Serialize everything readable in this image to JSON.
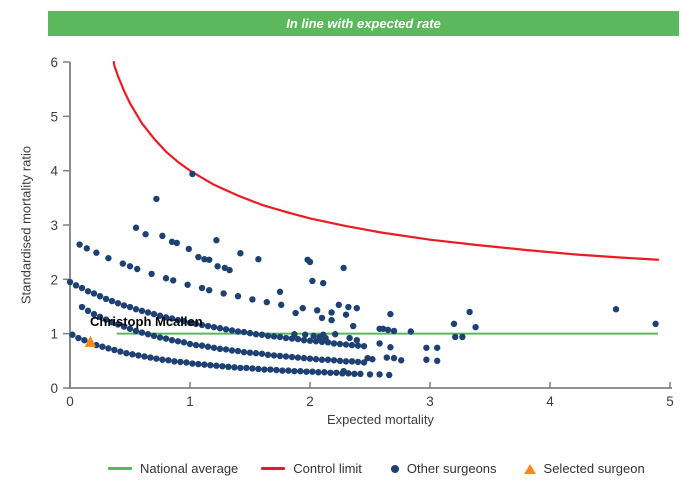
{
  "banner": {
    "title": "In line with expected rate",
    "background": "#5CB85C",
    "text_color": "#FFFFFF"
  },
  "annotation": {
    "label": "Christoph Mcallen"
  },
  "legend": {
    "items": [
      {
        "label": "National average",
        "swatch": "green-line",
        "color": "#5CB85C"
      },
      {
        "label": "Control limit",
        "swatch": "red-line",
        "color": "#EC1B23"
      },
      {
        "label": "Other surgeons",
        "swatch": "blue-dot",
        "color": "#1E4173"
      },
      {
        "label": "Selected surgeon",
        "swatch": "orange-triangle",
        "color": "#F28B1D"
      }
    ]
  },
  "chart_data": {
    "type": "scatter",
    "title": "In line with expected rate",
    "xlabel": "Expected mortality",
    "ylabel": "Standardised mortality ratio",
    "xlim": [
      0,
      5
    ],
    "ylim": [
      0,
      6
    ],
    "x_ticks": [
      0,
      1,
      2,
      3,
      4,
      5
    ],
    "y_ticks": [
      0,
      1,
      2,
      3,
      4,
      5,
      6
    ],
    "grid": false,
    "legend_position": "bottom",
    "axis_color": "#808080",
    "tick_label_color": "#3d3d3d",
    "national_average": {
      "y": 1.0,
      "x_start": 0.39,
      "x_end": 4.9,
      "color": "#5CB85C"
    },
    "control_limit": {
      "color": "#EC1B23",
      "points": [
        [
          0.365,
          6.0
        ],
        [
          0.37,
          5.93
        ],
        [
          0.4,
          5.74
        ],
        [
          0.45,
          5.47
        ],
        [
          0.5,
          5.24
        ],
        [
          0.6,
          4.87
        ],
        [
          0.7,
          4.59
        ],
        [
          0.8,
          4.35
        ],
        [
          0.9,
          4.16
        ],
        [
          1.0,
          4.0
        ],
        [
          1.2,
          3.74
        ],
        [
          1.4,
          3.54
        ],
        [
          1.6,
          3.37
        ],
        [
          1.8,
          3.24
        ],
        [
          2.0,
          3.12
        ],
        [
          2.3,
          2.98
        ],
        [
          2.6,
          2.86
        ],
        [
          3.0,
          2.73
        ],
        [
          3.4,
          2.63
        ],
        [
          3.8,
          2.54
        ],
        [
          4.2,
          2.46
        ],
        [
          4.6,
          2.4
        ],
        [
          4.9,
          2.36
        ]
      ]
    },
    "selected_surgeon": {
      "name": "Christoph Mcallen",
      "x": 0.17,
      "y": 0.85,
      "color": "#F28B1D"
    },
    "other_surgeons": {
      "color": "#1E4173",
      "marker_radius": 3.2,
      "points": [
        [
          0.02,
          0.98
        ],
        [
          0.07,
          0.92
        ],
        [
          0.12,
          0.88
        ],
        [
          0.17,
          0.83
        ],
        [
          0.22,
          0.79
        ],
        [
          0.27,
          0.76
        ],
        [
          0.32,
          0.73
        ],
        [
          0.37,
          0.7
        ],
        [
          0.42,
          0.67
        ],
        [
          0.47,
          0.64
        ],
        [
          0.52,
          0.62
        ],
        [
          0.57,
          0.6
        ],
        [
          0.62,
          0.58
        ],
        [
          0.67,
          0.56
        ],
        [
          0.72,
          0.54
        ],
        [
          0.77,
          0.52
        ],
        [
          0.82,
          0.51
        ],
        [
          0.87,
          0.49
        ],
        [
          0.92,
          0.48
        ],
        [
          0.97,
          0.47
        ],
        [
          1.02,
          0.45
        ],
        [
          1.07,
          0.44
        ],
        [
          1.12,
          0.43
        ],
        [
          1.17,
          0.42
        ],
        [
          1.22,
          0.41
        ],
        [
          1.27,
          0.4
        ],
        [
          1.32,
          0.39
        ],
        [
          1.37,
          0.38
        ],
        [
          1.42,
          0.37
        ],
        [
          1.47,
          0.37
        ],
        [
          1.52,
          0.36
        ],
        [
          1.57,
          0.35
        ],
        [
          1.62,
          0.34
        ],
        [
          1.67,
          0.34
        ],
        [
          1.72,
          0.33
        ],
        [
          1.77,
          0.32
        ],
        [
          1.82,
          0.32
        ],
        [
          1.87,
          0.31
        ],
        [
          1.92,
          0.31
        ],
        [
          1.97,
          0.3
        ],
        [
          2.02,
          0.3
        ],
        [
          2.07,
          0.29
        ],
        [
          2.12,
          0.29
        ],
        [
          2.17,
          0.28
        ],
        [
          2.22,
          0.28
        ],
        [
          2.27,
          0.27
        ],
        [
          2.32,
          0.27
        ],
        [
          2.37,
          0.26
        ],
        [
          2.42,
          0.26
        ],
        [
          2.5,
          0.25
        ],
        [
          2.58,
          0.25
        ],
        [
          2.66,
          0.24
        ],
        [
          0.1,
          1.49
        ],
        [
          0.15,
          1.42
        ],
        [
          0.2,
          1.36
        ],
        [
          0.25,
          1.31
        ],
        [
          0.3,
          1.26
        ],
        [
          0.35,
          1.21
        ],
        [
          0.4,
          1.17
        ],
        [
          0.45,
          1.13
        ],
        [
          0.5,
          1.09
        ],
        [
          0.55,
          1.05
        ],
        [
          0.6,
          1.02
        ],
        [
          0.65,
          0.99
        ],
        [
          0.7,
          0.96
        ],
        [
          0.75,
          0.93
        ],
        [
          0.8,
          0.91
        ],
        [
          0.85,
          0.88
        ],
        [
          0.9,
          0.86
        ],
        [
          0.95,
          0.84
        ],
        [
          1.0,
          0.81
        ],
        [
          1.05,
          0.79
        ],
        [
          1.1,
          0.78
        ],
        [
          1.15,
          0.76
        ],
        [
          1.2,
          0.74
        ],
        [
          1.25,
          0.72
        ],
        [
          1.3,
          0.71
        ],
        [
          1.35,
          0.69
        ],
        [
          1.4,
          0.68
        ],
        [
          1.45,
          0.66
        ],
        [
          1.5,
          0.65
        ],
        [
          1.55,
          0.64
        ],
        [
          1.6,
          0.63
        ],
        [
          1.65,
          0.61
        ],
        [
          1.7,
          0.6
        ],
        [
          1.75,
          0.59
        ],
        [
          1.8,
          0.58
        ],
        [
          1.85,
          0.57
        ],
        [
          1.9,
          0.56
        ],
        [
          1.95,
          0.55
        ],
        [
          2.0,
          0.54
        ],
        [
          2.05,
          0.53
        ],
        [
          2.1,
          0.52
        ],
        [
          2.15,
          0.52
        ],
        [
          2.2,
          0.51
        ],
        [
          2.25,
          0.5
        ],
        [
          2.3,
          0.49
        ],
        [
          2.35,
          0.49
        ],
        [
          2.4,
          0.48
        ],
        [
          2.45,
          0.47
        ],
        [
          0.0,
          1.95
        ],
        [
          0.05,
          1.89
        ],
        [
          0.1,
          1.84
        ],
        [
          0.15,
          1.78
        ],
        [
          0.2,
          1.74
        ],
        [
          0.25,
          1.69
        ],
        [
          0.3,
          1.64
        ],
        [
          0.35,
          1.6
        ],
        [
          0.4,
          1.56
        ],
        [
          0.45,
          1.52
        ],
        [
          0.5,
          1.49
        ],
        [
          0.55,
          1.45
        ],
        [
          0.6,
          1.42
        ],
        [
          0.65,
          1.39
        ],
        [
          0.7,
          1.36
        ],
        [
          0.75,
          1.33
        ],
        [
          0.8,
          1.3
        ],
        [
          0.85,
          1.28
        ],
        [
          0.9,
          1.25
        ],
        [
          0.95,
          1.23
        ],
        [
          1.0,
          1.2
        ],
        [
          1.05,
          1.18
        ],
        [
          1.1,
          1.16
        ],
        [
          1.15,
          1.14
        ],
        [
          1.2,
          1.12
        ],
        [
          1.25,
          1.1
        ],
        [
          1.3,
          1.08
        ],
        [
          1.35,
          1.06
        ],
        [
          1.4,
          1.04
        ],
        [
          1.45,
          1.03
        ],
        [
          1.5,
          1.01
        ],
        [
          1.55,
          0.99
        ],
        [
          1.6,
          0.98
        ],
        [
          1.65,
          0.96
        ],
        [
          1.7,
          0.95
        ],
        [
          1.75,
          0.94
        ],
        [
          1.8,
          0.92
        ],
        [
          1.85,
          0.91
        ],
        [
          1.9,
          0.9
        ],
        [
          1.95,
          0.88
        ],
        [
          2.0,
          0.87
        ],
        [
          2.05,
          0.86
        ],
        [
          2.1,
          0.85
        ],
        [
          2.15,
          0.84
        ],
        [
          2.2,
          0.82
        ],
        [
          2.25,
          0.81
        ],
        [
          2.3,
          0.8
        ],
        [
          2.35,
          0.79
        ],
        [
          2.4,
          0.78
        ],
        [
          2.45,
          0.77
        ],
        [
          0.08,
          2.64
        ],
        [
          0.14,
          2.57
        ],
        [
          0.22,
          2.49
        ],
        [
          0.32,
          2.39
        ],
        [
          0.44,
          2.29
        ],
        [
          0.5,
          2.24
        ],
        [
          0.56,
          2.19
        ],
        [
          0.68,
          2.1
        ],
        [
          0.8,
          2.02
        ],
        [
          0.86,
          1.98
        ],
        [
          0.98,
          1.9
        ],
        [
          1.1,
          1.84
        ],
        [
          1.16,
          1.8
        ],
        [
          1.28,
          1.74
        ],
        [
          1.4,
          1.69
        ],
        [
          1.52,
          1.63
        ],
        [
          1.64,
          1.58
        ],
        [
          1.76,
          1.53
        ],
        [
          1.94,
          1.47
        ],
        [
          2.06,
          1.43
        ],
        [
          2.18,
          1.39
        ],
        [
          2.3,
          1.35
        ],
        [
          0.72,
          3.48
        ],
        [
          1.02,
          3.94
        ],
        [
          0.55,
          2.95
        ],
        [
          0.63,
          2.83
        ],
        [
          0.77,
          2.8
        ],
        [
          0.85,
          2.69
        ],
        [
          0.89,
          2.67
        ],
        [
          0.99,
          2.56
        ],
        [
          1.07,
          2.41
        ],
        [
          1.12,
          2.37
        ],
        [
          1.16,
          2.36
        ],
        [
          1.22,
          2.72
        ],
        [
          1.23,
          2.24
        ],
        [
          1.29,
          2.21
        ],
        [
          1.33,
          2.17
        ],
        [
          1.42,
          2.48
        ],
        [
          1.57,
          2.37
        ],
        [
          1.98,
          2.36
        ],
        [
          2.0,
          2.32
        ],
        [
          2.02,
          1.97
        ],
        [
          2.11,
          1.93
        ],
        [
          2.28,
          2.21
        ],
        [
          1.75,
          1.77
        ],
        [
          1.88,
          1.38
        ],
        [
          2.1,
          1.29
        ],
        [
          2.18,
          1.25
        ],
        [
          2.24,
          1.53
        ],
        [
          2.32,
          1.49
        ],
        [
          2.39,
          1.47
        ],
        [
          2.36,
          1.14
        ],
        [
          2.67,
          1.36
        ],
        [
          2.58,
          1.09
        ],
        [
          2.61,
          1.09
        ],
        [
          2.65,
          1.07
        ],
        [
          2.7,
          1.05
        ],
        [
          2.84,
          1.04
        ],
        [
          2.97,
          0.74
        ],
        [
          3.06,
          0.74
        ],
        [
          2.97,
          0.52
        ],
        [
          3.06,
          0.5
        ],
        [
          2.58,
          0.82
        ],
        [
          2.67,
          0.75
        ],
        [
          2.48,
          0.55
        ],
        [
          2.52,
          0.53
        ],
        [
          2.64,
          0.56
        ],
        [
          2.7,
          0.55
        ],
        [
          2.76,
          0.51
        ],
        [
          2.28,
          0.31
        ],
        [
          3.2,
          1.18
        ],
        [
          3.33,
          1.4
        ],
        [
          3.21,
          0.94
        ],
        [
          3.27,
          0.94
        ],
        [
          3.38,
          1.12
        ],
        [
          4.55,
          1.45
        ],
        [
          4.88,
          1.18
        ],
        [
          1.87,
          0.99
        ],
        [
          1.96,
          0.98
        ],
        [
          2.03,
          0.96
        ],
        [
          2.11,
          0.98
        ],
        [
          2.21,
          0.99
        ],
        [
          2.33,
          0.92
        ],
        [
          2.39,
          0.88
        ],
        [
          2.08,
          0.94
        ],
        [
          2.13,
          0.92
        ]
      ]
    }
  }
}
